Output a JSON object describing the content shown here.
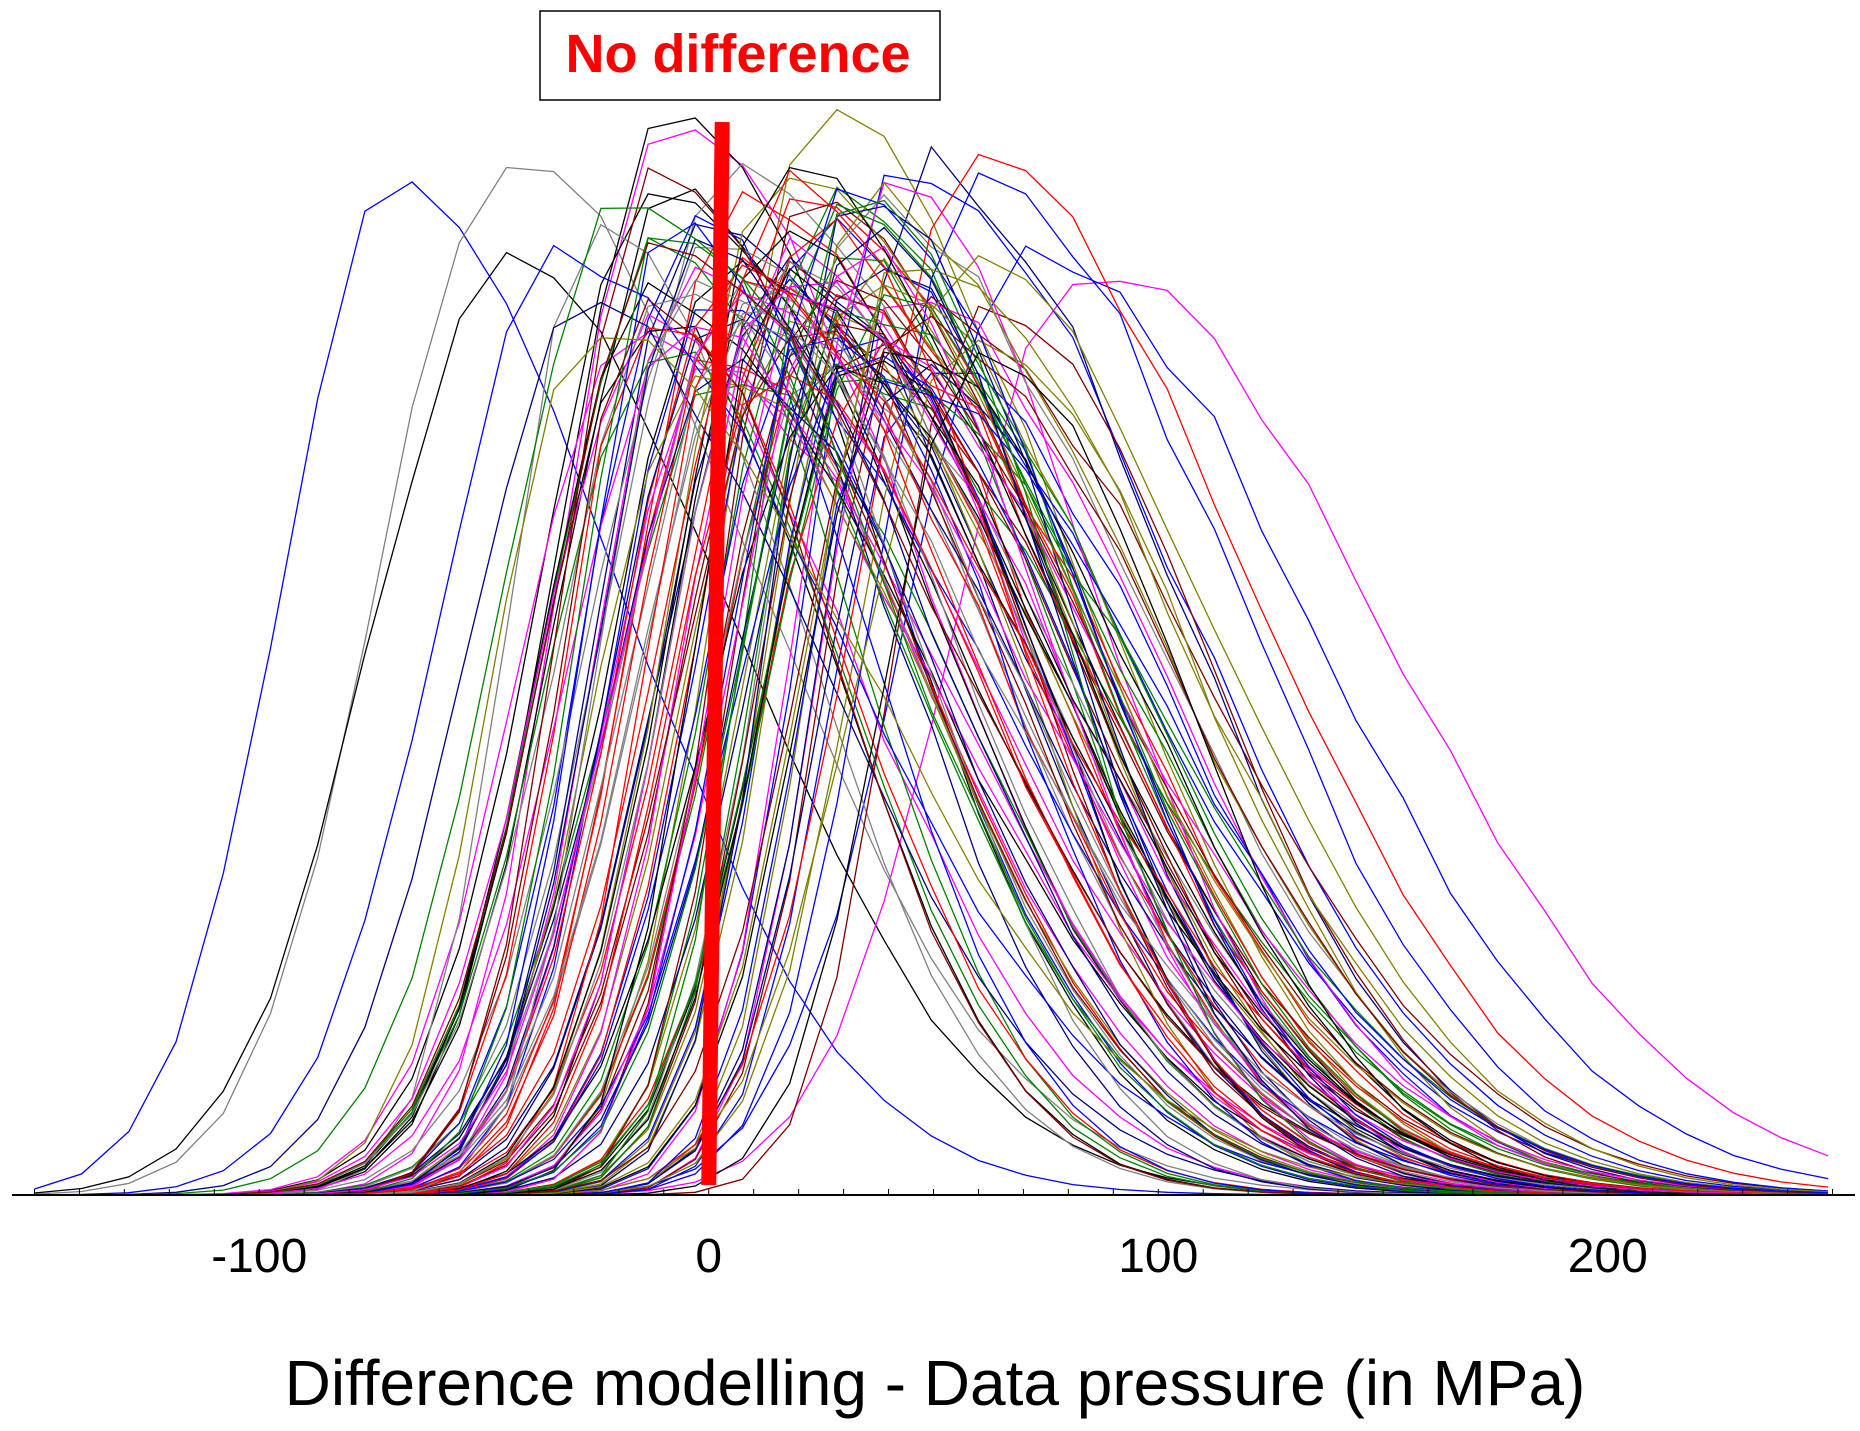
{
  "chart_data": {
    "type": "line",
    "title": "",
    "xlabel": "Difference modelling - Data pressure  (in MPa)",
    "ylabel": "",
    "xlim": [
      -155,
      255
    ],
    "ylim": [
      0,
      1
    ],
    "x_ticks": [
      -100,
      0,
      100,
      200
    ],
    "x_tick_labels": [
      "-100",
      "0",
      "100",
      "200"
    ],
    "minor_tick_step": 10,
    "grid": false,
    "annotation": {
      "text": "No difference",
      "x": 0
    },
    "reference_line": {
      "x_bottom": 0,
      "x_top": 3,
      "color": "#ff0000"
    },
    "distribution_count": 120,
    "palette": [
      "#0000ff",
      "#ff0000",
      "#008000",
      "#000000",
      "#ff00ff",
      "#808080",
      "#808000",
      "#800000",
      "#000080"
    ],
    "series_params": [
      {
        "name": "curve-blue-far-left",
        "color": "#0000ff",
        "center": -70,
        "spread_left": 25,
        "spread_right": 50,
        "peak": 0.94
      },
      {
        "name": "curve-gray-left",
        "color": "#808080",
        "center": -45,
        "spread_left": 28,
        "spread_right": 55,
        "peak": 0.96
      },
      {
        "name": "curve-black-left",
        "color": "#000000",
        "center": -45,
        "spread_left": 30,
        "spread_right": 52,
        "peak": 0.86
      },
      {
        "name": "curve-magenta-right",
        "color": "#ff00ff",
        "center": 85,
        "spread_left": 30,
        "spread_right": 65,
        "peak": 0.87
      },
      {
        "name": "curve-blue-right",
        "color": "#0000ff",
        "center": 72,
        "spread_left": 28,
        "spread_right": 62,
        "peak": 0.88
      },
      {
        "name": "curve-olive-peak",
        "color": "#808000",
        "center": 25,
        "spread_left": 22,
        "spread_right": 55,
        "peak": 1.0
      },
      {
        "name": "curve-magenta-peak",
        "color": "#ff00ff",
        "center": -10,
        "spread_left": 22,
        "spread_right": 55,
        "peak": 1.0
      },
      {
        "name": "curve-black-peak",
        "color": "#000000",
        "center": -10,
        "spread_left": 24,
        "spread_right": 55,
        "peak": 0.99
      }
    ]
  }
}
